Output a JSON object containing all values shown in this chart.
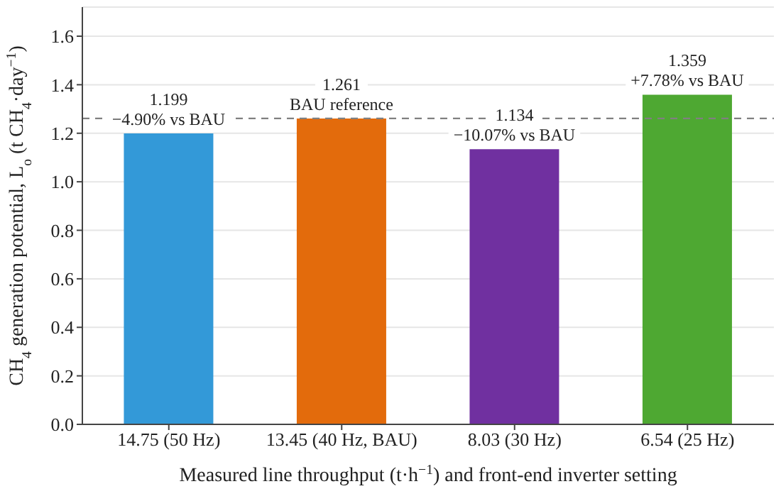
{
  "chart_data": {
    "type": "bar",
    "categories": [
      "14.75 (50 Hz)",
      "13.45 (40 Hz, BAU)",
      "8.03 (30 Hz)",
      "6.54 (25 Hz)"
    ],
    "values": [
      1.199,
      1.261,
      1.134,
      1.359
    ],
    "colors": [
      "#3399d8",
      "#e36b0c",
      "#7030a0",
      "#4ea832"
    ],
    "data_labels": true,
    "annotations": [
      {
        "text": "−4.90% vs BAU",
        "x": "14.75 (50 Hz)",
        "y": 1.199
      },
      {
        "text": "BAU reference",
        "x": "13.45 (40 Hz, BAU)",
        "y": 1.261
      },
      {
        "text": "−10.07% vs BAU",
        "x": "8.03 (30 Hz)",
        "y": 1.134
      },
      {
        "text": "+7.78% vs BAU",
        "x": "6.54 (25 Hz)",
        "y": 1.359
      }
    ],
    "ylabel": "CH$_{4}$ generation potential, L$_{o}$ (t CH$_{4}$·day$^{−1}$)",
    "xlabel": "Measured line throughput (t·h$^{−1}$) and front-end inverter setting",
    "ylim": [
      0,
      1.72
    ],
    "yticks": [
      {
        "value": 0,
        "label": "0.0"
      },
      {
        "value": 0.2,
        "label": "0.2"
      },
      {
        "value": 0.4,
        "label": "0.4"
      },
      {
        "value": 0.6,
        "label": "0.6"
      },
      {
        "value": 0.8,
        "label": "0.8"
      },
      {
        "value": 1,
        "label": "1.0"
      },
      {
        "value": 1.2,
        "label": "1.2"
      },
      {
        "value": 1.4,
        "label": "1.4"
      },
      {
        "value": 1.6,
        "label": "1.6"
      }
    ],
    "ref_lines": [
      {
        "axis": "y",
        "value": 1.261,
        "color": "#808080",
        "line_style": "dashed"
      }
    ],
    "grid": "y"
  }
}
